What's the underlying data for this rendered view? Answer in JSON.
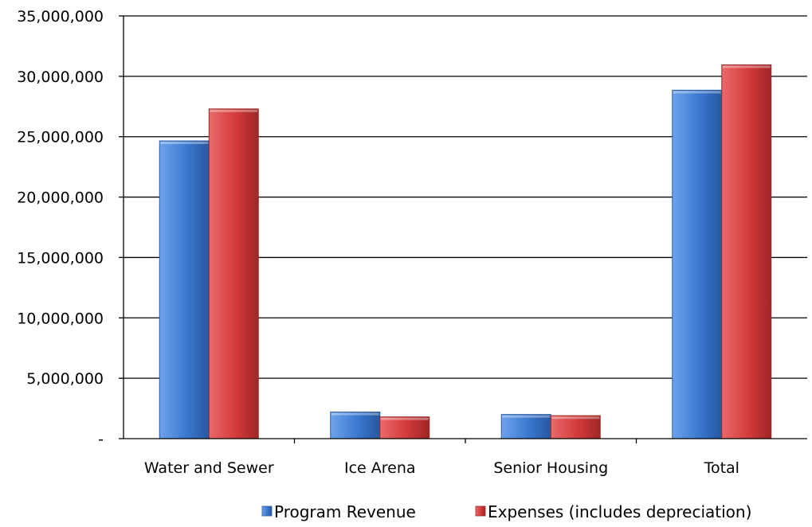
{
  "chart_data": {
    "type": "bar",
    "title": "",
    "xlabel": "",
    "ylabel": "",
    "categories": [
      "Water and Sewer",
      "Ice Arena",
      "Senior Housing",
      "Total"
    ],
    "series": [
      {
        "name": "Program Revenue",
        "color": "#3f7fd6",
        "values": [
          24650000,
          2200000,
          2000000,
          28850000
        ]
      },
      {
        "name": "Expenses (includes depreciation)",
        "color": "#d93f3f",
        "values": [
          27300000,
          1800000,
          1900000,
          30950000
        ]
      }
    ],
    "ylim": [
      0,
      35000000
    ],
    "yticks": [
      0,
      5000000,
      10000000,
      15000000,
      20000000,
      25000000,
      30000000,
      35000000
    ],
    "ytick_labels": [
      "-",
      "5,000,000",
      "10,000,000",
      "15,000,000",
      "20,000,000",
      "25,000,000",
      "30,000,000",
      "35,000,000"
    ],
    "grid": true,
    "legend": "bottom"
  }
}
